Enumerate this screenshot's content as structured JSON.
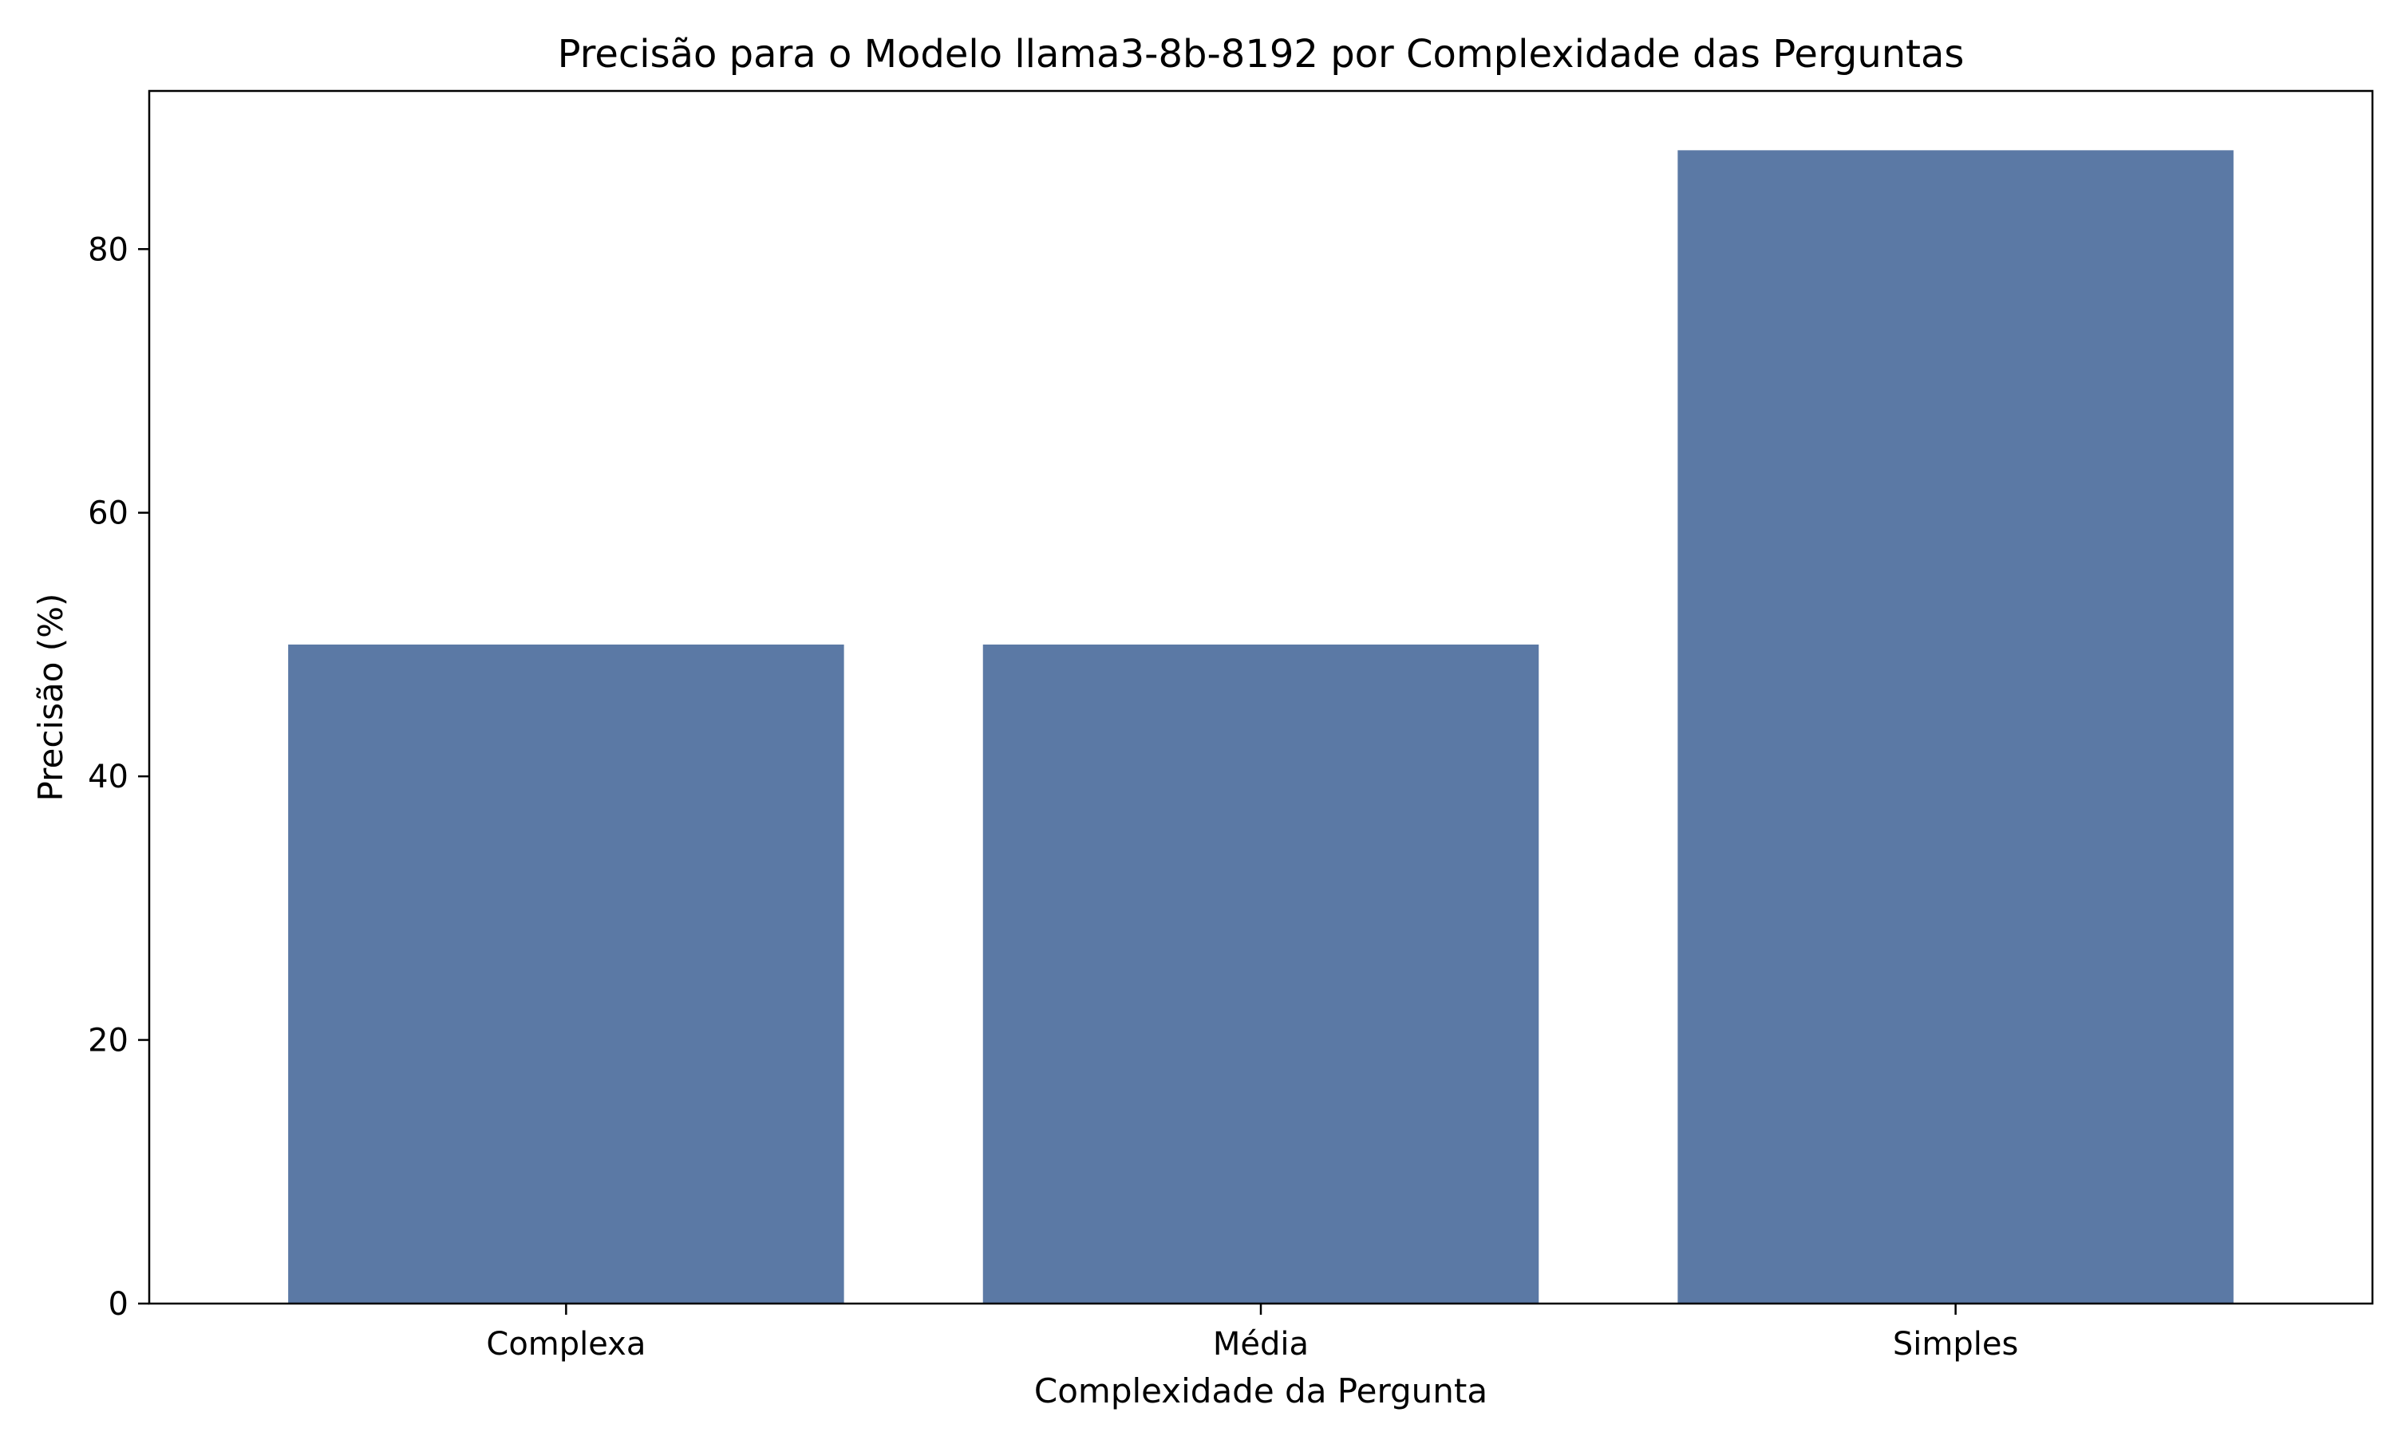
{
  "chart_data": {
    "type": "bar",
    "title": "Precisão para o Modelo llama3-8b-8192 por Complexidade das Perguntas",
    "xlabel": "Complexidade da Pergunta",
    "ylabel": "Precisão (%)",
    "categories": [
      "Complexa",
      "Média",
      "Simples"
    ],
    "values": [
      50.0,
      50.0,
      87.5
    ],
    "ylim": [
      0,
      92
    ],
    "yticks": [
      0,
      20,
      40,
      60,
      80
    ],
    "grid": false,
    "legend": "none",
    "bar_color": "#5b79a5"
  }
}
